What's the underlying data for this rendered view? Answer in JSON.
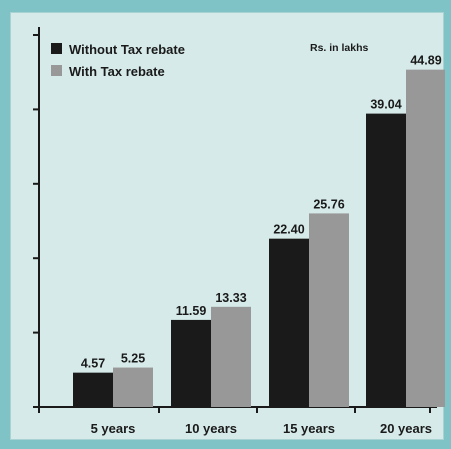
{
  "chart_data": {
    "type": "bar",
    "categories": [
      "5 years",
      "10 years",
      "15 years",
      "20 years"
    ],
    "series": [
      {
        "name": "Without Tax rebate",
        "values": [
          4.57,
          11.59,
          22.4,
          39.04
        ],
        "color": "#1a1a1a"
      },
      {
        "name": "With Tax rebate",
        "values": [
          5.25,
          13.33,
          25.76,
          44.89
        ],
        "color": "#989898"
      }
    ],
    "value_labels": [
      [
        "4.57",
        "11.59",
        "22.40",
        "39.04"
      ],
      [
        "5.25",
        "13.33",
        "25.76",
        "44.89"
      ]
    ],
    "units": "Rs. in lakhs",
    "ylim": [
      0,
      49.5
    ],
    "y_ticks": [
      0,
      9.9,
      19.8,
      29.7,
      39.6,
      49.5
    ],
    "grid": false,
    "legend_position": "top-left",
    "background_color": "#d6ebe9",
    "frame_color": "#7fc3c7"
  }
}
